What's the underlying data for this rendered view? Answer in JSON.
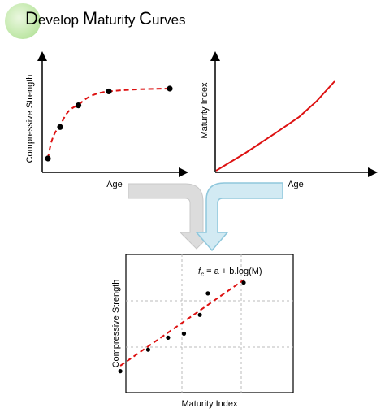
{
  "title": "Develop Maturity Curves",
  "charts": {
    "strength_age": {
      "xlabel": "Age",
      "ylabel": "Compressive Strength",
      "points": [
        [
          0,
          0.0
        ],
        [
          1,
          0.45
        ],
        [
          2.5,
          0.76
        ],
        [
          5,
          0.96
        ],
        [
          10,
          1.0
        ]
      ]
    },
    "maturity_age": {
      "xlabel": "Age",
      "ylabel": "Maturity Index",
      "line": [
        [
          0,
          0.0
        ],
        [
          2.5,
          0.2
        ],
        [
          5,
          0.42
        ],
        [
          7,
          0.6
        ],
        [
          8.5,
          0.78
        ],
        [
          10,
          1.0
        ]
      ]
    },
    "strength_maturity": {
      "xlabel": "Maturity Index",
      "ylabel": "Compressive Strength",
      "formula_lead": "f",
      "formula_sub": "c",
      "formula_rest": " = a + b.log(M)",
      "points": [
        [
          0.38,
          0.16
        ],
        [
          0.52,
          0.32
        ],
        [
          0.62,
          0.41
        ],
        [
          0.7,
          0.44
        ],
        [
          0.78,
          0.58
        ],
        [
          0.82,
          0.74
        ],
        [
          1.0,
          0.82
        ]
      ],
      "fit": [
        [
          0.38,
          0.2
        ],
        [
          1.0,
          0.84
        ]
      ]
    }
  },
  "colors": {
    "red": "#dd1111",
    "arrow_gray": "#dcdcdc",
    "arrow_blue": "#d2eaf3",
    "arrow_blue_stroke": "#8fc7dc",
    "grid": "#bbbbbb"
  }
}
